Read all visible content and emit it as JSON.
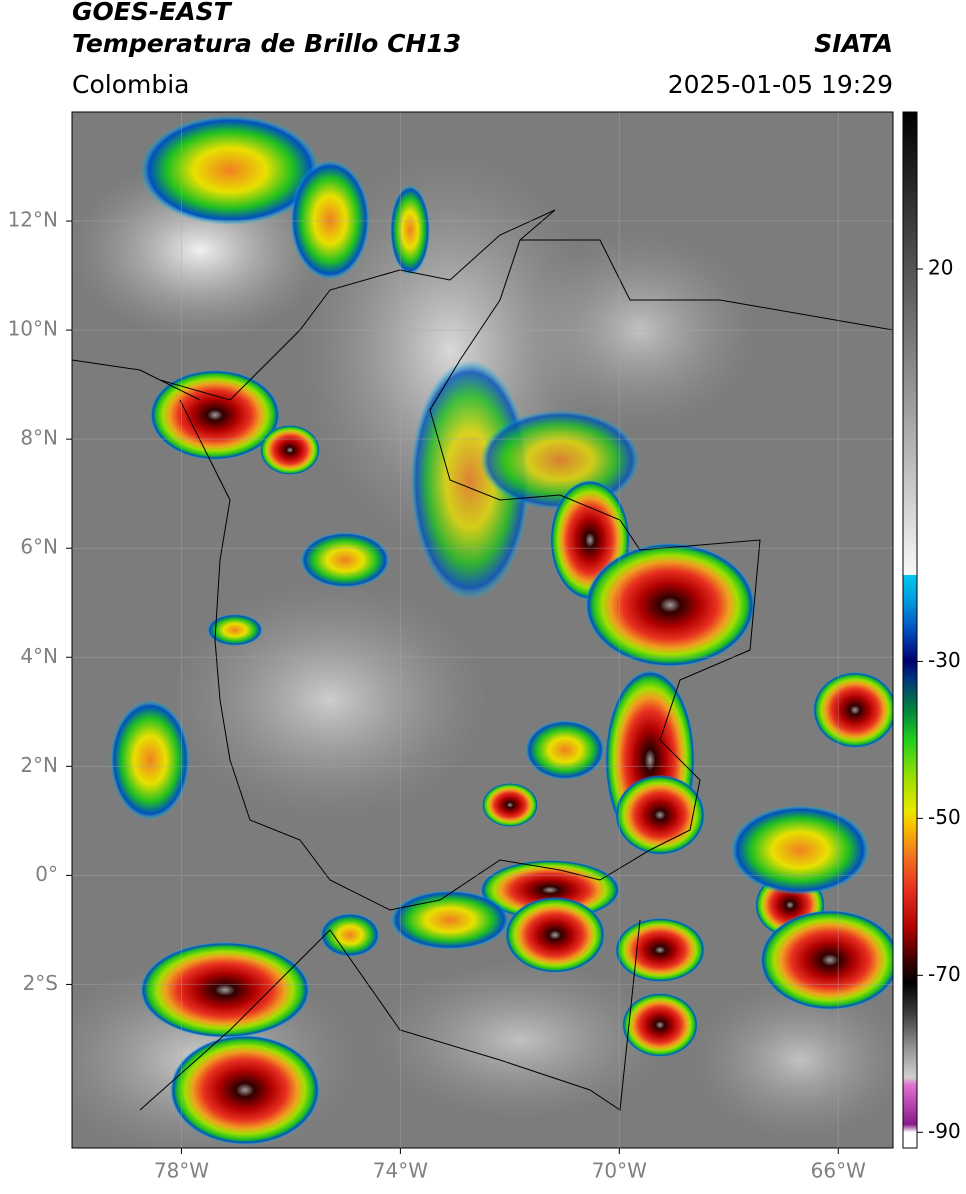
{
  "header": {
    "title": "GOES-EAST",
    "subtitle": "Temperatura de Brillo CH13",
    "source": "SIATA",
    "region": "Colombia",
    "timestamp": "2025-01-05 19:29"
  },
  "map": {
    "xlim": [
      -80,
      -65
    ],
    "ylim": [
      -5,
      14
    ],
    "grid": true,
    "xticks": [
      {
        "value": -78,
        "label": "78°W"
      },
      {
        "value": -74,
        "label": "74°W"
      },
      {
        "value": -70,
        "label": "70°W"
      },
      {
        "value": -66,
        "label": "66°W"
      }
    ],
    "yticks": [
      {
        "value": 12,
        "label": "12°N"
      },
      {
        "value": 10,
        "label": "10°N"
      },
      {
        "value": 8,
        "label": "8°N"
      },
      {
        "value": 6,
        "label": "6°N"
      },
      {
        "value": 4,
        "label": "4°N"
      },
      {
        "value": 2,
        "label": "2°N"
      },
      {
        "value": 0,
        "label": "0°"
      },
      {
        "value": -2,
        "label": "2°S"
      }
    ]
  },
  "colorbar": {
    "lim": [
      -92,
      40
    ],
    "ticks": [
      20,
      -30,
      -50,
      -70,
      -90
    ],
    "stops": [
      [
        -92,
        "#ffffff"
      ],
      [
        -90,
        "#ffffff"
      ],
      [
        -89,
        "#8a1a8a"
      ],
      [
        -84,
        "#e070d0"
      ],
      [
        -83,
        "#d0d0d0"
      ],
      [
        -79,
        "#909090"
      ],
      [
        -75,
        "#404040"
      ],
      [
        -71,
        "#000000"
      ],
      [
        -68,
        "#400000"
      ],
      [
        -64,
        "#b00000"
      ],
      [
        -59,
        "#e83020"
      ],
      [
        -55,
        "#f07020"
      ],
      [
        -51,
        "#f8c000"
      ],
      [
        -49,
        "#e8e800"
      ],
      [
        -45,
        "#a0e000"
      ],
      [
        -40,
        "#20d020"
      ],
      [
        -36,
        "#008040"
      ],
      [
        -32,
        "#003080"
      ],
      [
        -30,
        "#000070"
      ],
      [
        -26,
        "#0050c0"
      ],
      [
        -22,
        "#00a0e0"
      ],
      [
        -19,
        "#00c8f0"
      ],
      [
        -19,
        "#f8f8f8"
      ],
      [
        40,
        "#000000"
      ]
    ]
  }
}
